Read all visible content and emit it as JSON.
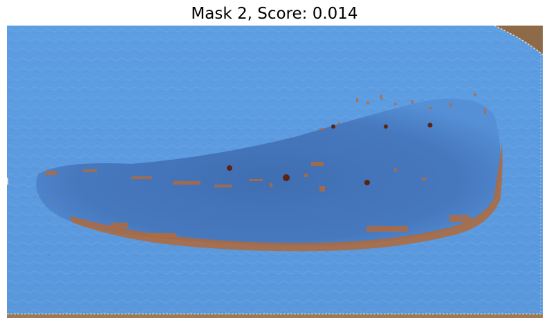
{
  "figure": {
    "title": "Mask 2, Score: 0.014"
  },
  "image": {
    "mask_color": "#5b9be0",
    "background_color": "#8a6a4a",
    "object_color": "#3f6fb5",
    "rust_color": "#b2683a"
  }
}
